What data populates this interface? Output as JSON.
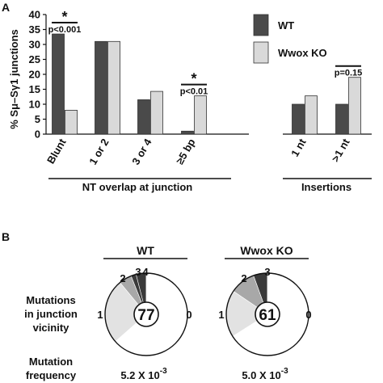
{
  "colors": {
    "wt": "#4a4a4a",
    "ko": "#d9d9d9",
    "pie_dark": "#3a3a3a",
    "pie_mid": "#a8a8a8",
    "pie_light": "#e2e2e2",
    "pie_base": "#ffffff"
  },
  "panel_a": {
    "label": "A",
    "chart_data": {
      "type": "bar",
      "ylabel": "% Sμ–Sγ1 junctions",
      "ylim": [
        0,
        40
      ],
      "yticks": [
        "0",
        "5",
        "10",
        "15",
        "20",
        "25",
        "30",
        "35",
        "40"
      ],
      "categories": [
        "Blunt",
        "1 or 2",
        "3 or 4",
        "≥5 bp",
        "1 nt",
        ">1 nt"
      ],
      "series": [
        {
          "name": "WT",
          "values": [
            33.5,
            31,
            11.5,
            1,
            10,
            10
          ]
        },
        {
          "name": "Wwox KO",
          "values": [
            8,
            31,
            14.3,
            12.8,
            12.8,
            19
          ]
        }
      ],
      "legend": {
        "position": "top-right",
        "entries": [
          "WT",
          "Wwox KO"
        ]
      },
      "groups": [
        {
          "label": "NT overlap at junction",
          "categories": [
            0,
            1,
            2,
            3
          ]
        },
        {
          "label": "Insertions",
          "categories": [
            4,
            5
          ]
        }
      ],
      "annotations": [
        {
          "category": 0,
          "star": "*",
          "text": "p<0.001"
        },
        {
          "category": 3,
          "star": "*",
          "text": "p<0.01"
        },
        {
          "category": 5,
          "star": "",
          "text": "p=0.15"
        }
      ]
    }
  },
  "panel_b": {
    "label": "B",
    "row_labels": {
      "mutations": [
        "Mutations",
        "in junction",
        "vicinity"
      ],
      "frequency": [
        "Mutation",
        "frequency"
      ]
    },
    "chart_data": [
      {
        "type": "pie",
        "title": "WT",
        "center": "77",
        "categories": [
          "0",
          "1",
          "2",
          "3",
          "4"
        ],
        "values": [
          63.5,
          25.5,
          5,
          2,
          4
        ],
        "frequency": {
          "base": "5.2 X 10",
          "exponent": "-3"
        }
      },
      {
        "type": "pie",
        "title": "Wwox KO",
        "center": "61",
        "categories": [
          "0",
          "1",
          "2",
          "3"
        ],
        "values": [
          66,
          18.5,
          10,
          5.5
        ],
        "frequency": {
          "base": "5.0 X 10",
          "exponent": "-3"
        }
      }
    ]
  }
}
